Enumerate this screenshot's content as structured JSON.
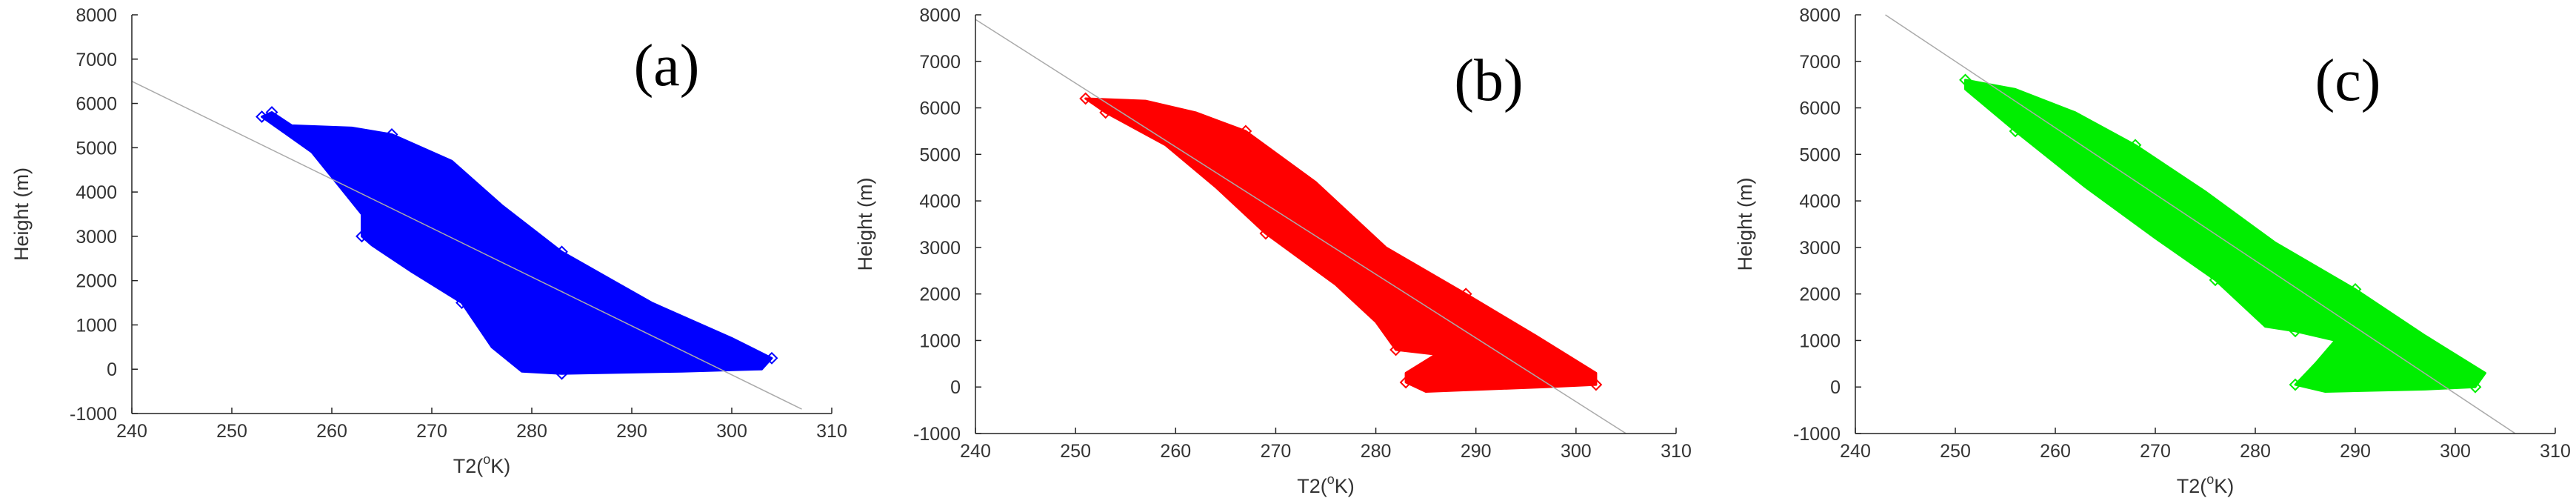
{
  "chart_data": [
    {
      "type": "scatter",
      "panel_label": "(a)",
      "marker_color": "#0000ff",
      "xlabel": "T2(",
      "xlabel_sup": "o",
      "xlabel_suffix": "K)",
      "ylabel": "Height (m)",
      "xlim": [
        240,
        310
      ],
      "ylim": [
        -1000,
        8000
      ],
      "xticks": [
        240,
        250,
        260,
        270,
        280,
        290,
        300,
        310
      ],
      "yticks": [
        -1000,
        0,
        1000,
        2000,
        3000,
        4000,
        5000,
        6000,
        7000,
        8000
      ],
      "fit_line": {
        "x": [
          240,
          307
        ],
        "y": [
          6500,
          -900
        ]
      },
      "cloud_outline": [
        [
          254,
          5800
        ],
        [
          256,
          5500
        ],
        [
          262,
          5450
        ],
        [
          266,
          5300
        ],
        [
          272,
          4700
        ],
        [
          277,
          3700
        ],
        [
          283,
          2650
        ],
        [
          292,
          1500
        ],
        [
          300,
          700
        ],
        [
          304,
          250
        ],
        [
          303,
          0
        ],
        [
          295,
          -50
        ],
        [
          283,
          -100
        ],
        [
          279,
          -50
        ],
        [
          276,
          500
        ],
        [
          273,
          1500
        ],
        [
          268,
          2200
        ],
        [
          264,
          2800
        ],
        [
          263,
          3000
        ],
        [
          263,
          3500
        ],
        [
          258,
          4900
        ],
        [
          253,
          5700
        ]
      ]
    },
    {
      "type": "scatter",
      "panel_label": "(b)",
      "marker_color": "#ff0000",
      "xlabel": "T2(",
      "xlabel_sup": "o",
      "xlabel_suffix": "K)",
      "ylabel": "Height (m)",
      "xlim": [
        240,
        310
      ],
      "ylim": [
        -1000,
        8000
      ],
      "xticks": [
        240,
        250,
        260,
        270,
        280,
        290,
        300,
        310
      ],
      "yticks": [
        -1000,
        0,
        1000,
        2000,
        3000,
        4000,
        5000,
        6000,
        7000,
        8000
      ],
      "fit_line": {
        "x": [
          240,
          305
        ],
        "y": [
          7900,
          -1000
        ]
      },
      "cloud_outline": [
        [
          251,
          6200
        ],
        [
          257,
          6150
        ],
        [
          262,
          5900
        ],
        [
          267,
          5500
        ],
        [
          274,
          4400
        ],
        [
          281,
          3000
        ],
        [
          289,
          2000
        ],
        [
          296,
          1100
        ],
        [
          302,
          300
        ],
        [
          302,
          50
        ],
        [
          297,
          0
        ],
        [
          285,
          -100
        ],
        [
          283,
          100
        ],
        [
          283,
          300
        ],
        [
          286,
          700
        ],
        [
          282,
          800
        ],
        [
          280,
          1400
        ],
        [
          276,
          2200
        ],
        [
          269,
          3300
        ],
        [
          264,
          4300
        ],
        [
          259,
          5200
        ],
        [
          253,
          5900
        ]
      ]
    },
    {
      "type": "scatter",
      "panel_label": "(c)",
      "marker_color": "#00ee00",
      "xlabel": "T2(",
      "xlabel_sup": "o",
      "xlabel_suffix": "K)",
      "ylabel": "Height (m)",
      "xlim": [
        240,
        310
      ],
      "ylim": [
        -1000,
        8000
      ],
      "xticks": [
        240,
        250,
        260,
        270,
        280,
        290,
        300,
        310
      ],
      "yticks": [
        -1000,
        0,
        1000,
        2000,
        3000,
        4000,
        5000,
        6000,
        7000,
        8000
      ],
      "fit_line": {
        "x": [
          243,
          306
        ],
        "y": [
          8000,
          -1000
        ]
      },
      "cloud_outline": [
        [
          251,
          6600
        ],
        [
          256,
          6400
        ],
        [
          262,
          5900
        ],
        [
          268,
          5200
        ],
        [
          275,
          4200
        ],
        [
          282,
          3100
        ],
        [
          290,
          2100
        ],
        [
          297,
          1100
        ],
        [
          303,
          300
        ],
        [
          302,
          0
        ],
        [
          297,
          -50
        ],
        [
          287,
          -100
        ],
        [
          284,
          50
        ],
        [
          286,
          500
        ],
        [
          288,
          1000
        ],
        [
          284,
          1200
        ],
        [
          281,
          1300
        ],
        [
          279,
          1700
        ],
        [
          276,
          2300
        ],
        [
          270,
          3200
        ],
        [
          263,
          4300
        ],
        [
          256,
          5500
        ],
        [
          251,
          6400
        ]
      ]
    }
  ]
}
